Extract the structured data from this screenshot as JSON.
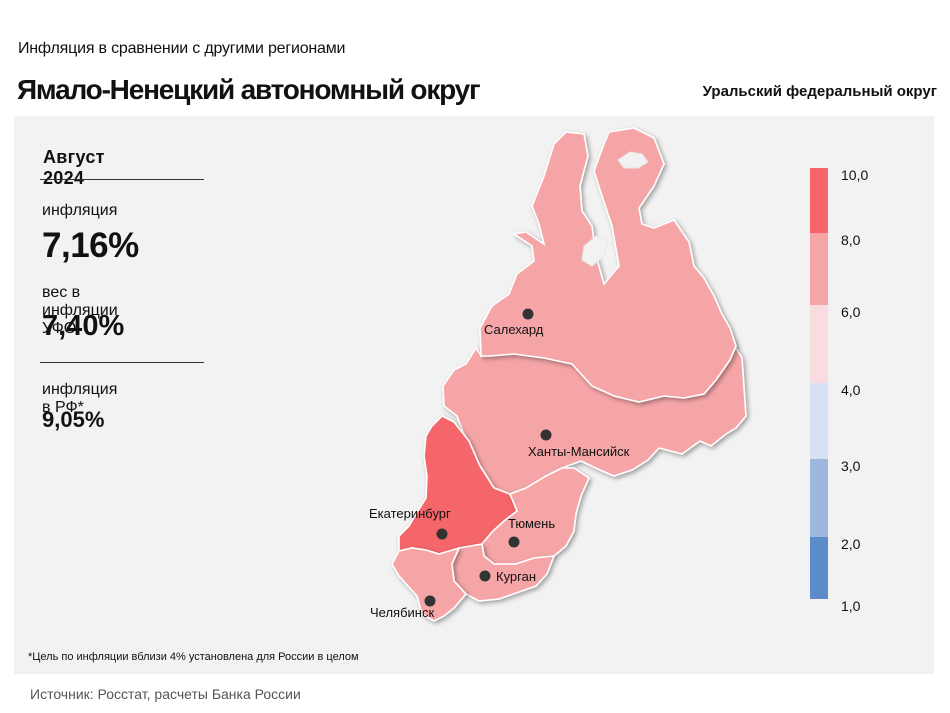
{
  "header": {
    "subtitle": "Инфляция  в сравнении  с другими  регионами",
    "title": "Ямало-Ненецкий автономный округ",
    "federal_district": "Уральский федеральный округ"
  },
  "info": {
    "period": "Август 2024",
    "inflation_label": "инфляция",
    "inflation_value": "7,16%",
    "weight_label": "вес в инфляции  УФО",
    "weight_value": "7,40%",
    "rf_label": "инфляция  в РФ*",
    "rf_value": "9,05%"
  },
  "cities": [
    {
      "name": "Салехард"
    },
    {
      "name": "Ханты-Мансийск"
    },
    {
      "name": "Екатеринбург"
    },
    {
      "name": "Тюмень"
    },
    {
      "name": "Курган"
    },
    {
      "name": "Челябинск"
    }
  ],
  "legend": {
    "ticks": [
      "10,0",
      "8,0",
      "6,0",
      "4,0",
      "3,0",
      "2,0",
      "1,0"
    ],
    "bins": [
      {
        "range": "8,0–10,0",
        "color": "#f5666a"
      },
      {
        "range": "6,0–8,0",
        "color": "#f6a5a7"
      },
      {
        "range": "4,0–6,0",
        "color": "#f8dcdf"
      },
      {
        "range": "3,0–4,0",
        "color": "#d6e2f3"
      },
      {
        "range": "2,0–3,0",
        "color": "#9db8dc"
      },
      {
        "range": "1,0–2,0",
        "color": "#5b8bc8"
      }
    ]
  },
  "regions": {
    "yamalo_nenets": {
      "color": "#f6a5a7"
    },
    "khanty_mansi": {
      "color": "#f6a5a7"
    },
    "sverdlovsk": {
      "color": "#f5666a"
    },
    "tyumen": {
      "color": "#f6a5a7"
    },
    "kurgan": {
      "color": "#f6a5a7"
    },
    "chelyabinsk": {
      "color": "#f6a5a7"
    }
  },
  "footnote": "*Цель по инфляции вблизи 4% установлена для России в целом",
  "source": "Источник: Росстат, расчеты Банка России"
}
